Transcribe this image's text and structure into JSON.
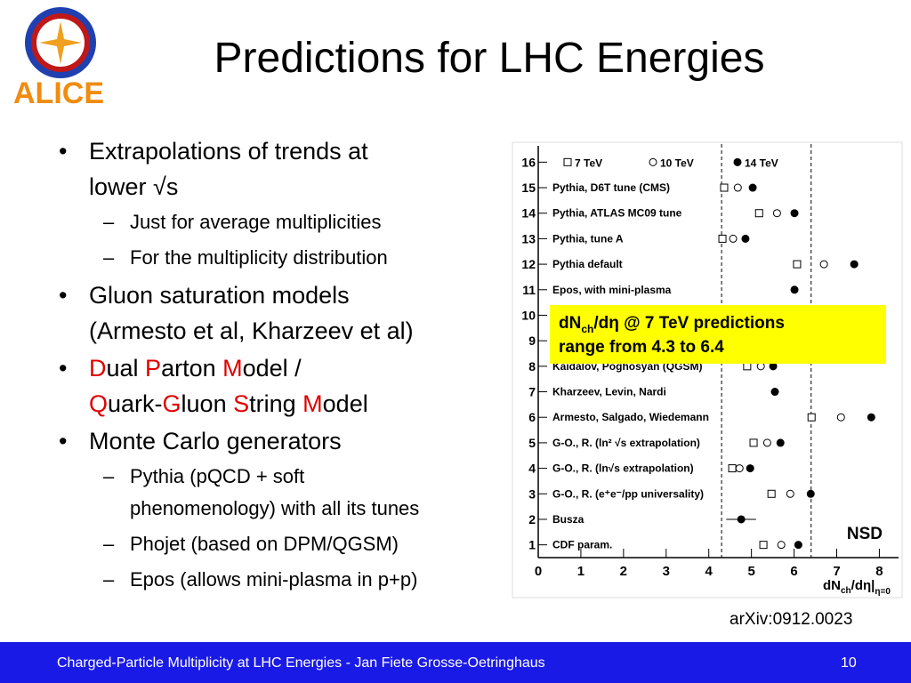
{
  "logo_text": "ALICE",
  "title": "Predictions for LHC Energies",
  "highlight_color": "#e00000",
  "bullets": [
    {
      "lines": [
        "Extrapolations of trends at",
        "lower √s"
      ],
      "sub": [
        [
          "Just for average multiplicities"
        ],
        [
          "For the multiplicity distribution"
        ]
      ]
    },
    {
      "lines": [
        "Gluon saturation models",
        "(Armesto et al, Kharzeev et al)"
      ]
    },
    {
      "lines": [
        [
          {
            "text": "D",
            "hl": true
          },
          {
            "text": "ual "
          },
          {
            "text": "P",
            "hl": true
          },
          {
            "text": "arton "
          },
          {
            "text": "M",
            "hl": true
          },
          {
            "text": "odel /"
          }
        ],
        [
          {
            "text": "Q",
            "hl": true
          },
          {
            "text": "uark-"
          },
          {
            "text": "G",
            "hl": true
          },
          {
            "text": "luon "
          },
          {
            "text": "S",
            "hl": true
          },
          {
            "text": "tring "
          },
          {
            "text": "M",
            "hl": true
          },
          {
            "text": "odel"
          }
        ]
      ]
    },
    {
      "lines": [
        "Monte Carlo generators"
      ],
      "sub": [
        [
          "Pythia (pQCD + soft",
          "phenomenology) with all its tunes"
        ],
        [
          "Phojet (based on DPM/QGSM)"
        ],
        [
          "Epos (allows mini-plasma in p+p)"
        ]
      ]
    }
  ],
  "chart_data": {
    "type": "dot",
    "categories": [
      "CDF param.",
      "Busza",
      "G-O., R. (e⁺e⁻/pp universality)",
      "G-O., R. (ln√s extrapolation)",
      "G-O., R.  (ln² √s extrapolation)",
      "Armesto, Salgado, Wiedemann",
      "Kharzeev, Levin, Nardi",
      "Kaidalov, Poghosyan (QGSM)",
      null,
      null,
      "Epos, with mini-plasma",
      "Pythia default",
      "Pythia, tune A",
      "Pythia, ATLAS MC09 tune",
      "Pythia, D6T tune (CMS)",
      null
    ],
    "series": [
      {
        "name": "7 TeV",
        "marker": "square-open",
        "color": "#000000",
        "values": [
          5.28,
          null,
          5.47,
          4.55,
          5.05,
          6.41,
          null,
          4.9,
          null,
          null,
          null,
          6.07,
          4.32,
          5.18,
          4.36,
          null
        ]
      },
      {
        "name": "10 TeV",
        "marker": "circle-open",
        "color": "#000000",
        "values": [
          5.7,
          null,
          5.91,
          4.72,
          5.37,
          7.1,
          null,
          5.22,
          null,
          null,
          null,
          6.7,
          4.57,
          5.6,
          4.68,
          null
        ]
      },
      {
        "name": "14 TeV",
        "marker": "circle-filled",
        "color": "#000000",
        "values": [
          6.1,
          4.76,
          6.39,
          4.97,
          5.68,
          7.81,
          5.55,
          5.51,
          null,
          null,
          6.01,
          7.41,
          4.86,
          6.01,
          5.03,
          null
        ],
        "errors": [
          null,
          0.35,
          null,
          null,
          null,
          null,
          null,
          null,
          null,
          null,
          null,
          null,
          null,
          null,
          null,
          null
        ]
      }
    ],
    "xlim": [
      0,
      8.45
    ],
    "xticks": [
      0,
      1,
      2,
      3,
      4,
      5,
      6,
      7,
      8
    ],
    "ylim": [
      0.5,
      16.5
    ],
    "yticks": [
      1,
      2,
      3,
      4,
      5,
      6,
      7,
      8,
      9,
      10,
      11,
      12,
      13,
      14,
      15,
      16
    ],
    "legend_row": 16,
    "ref_lines": [
      4.3,
      6.4
    ],
    "xlabel": {
      "main": "dN",
      "sub1": "ch",
      "mid": "/dη|",
      "sub2": "η=0"
    },
    "corner_label": "NSD",
    "annotation": {
      "text1": "dN",
      "sub": "ch",
      "text2": "/dη @ 7 TeV predictions",
      "line2": "range from 4.3 to 6.4",
      "color": "#ffff00"
    }
  },
  "source": "arXiv:0912.0023",
  "footer": {
    "text": "Charged-Particle Multiplicity at LHC Energies - Jan Fiete Grosse-Oetringhaus",
    "page": "10"
  }
}
